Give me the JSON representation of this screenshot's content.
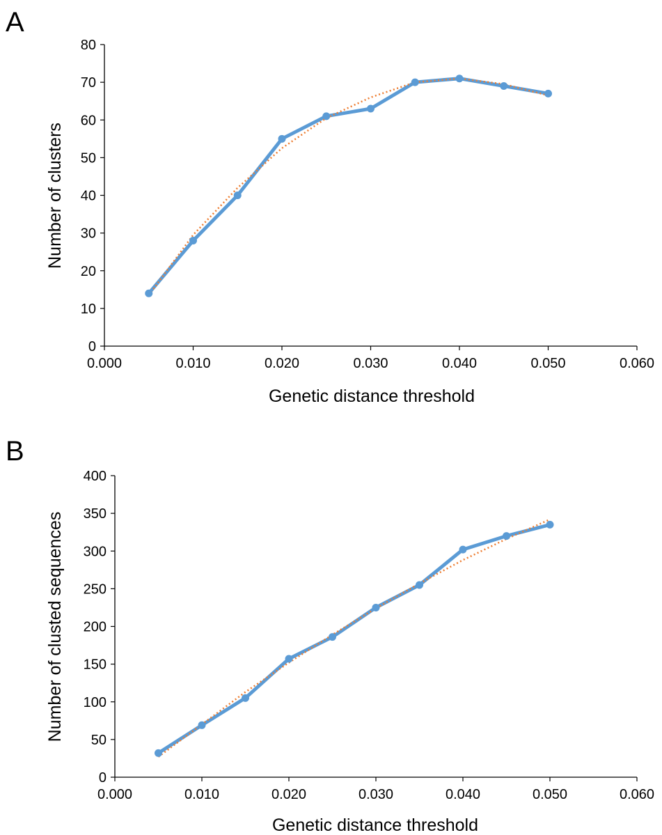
{
  "chart_data": [
    {
      "panel_label": "A",
      "type": "line",
      "x": [
        0.005,
        0.01,
        0.015,
        0.02,
        0.025,
        0.03,
        0.035,
        0.04,
        0.045,
        0.05
      ],
      "series": [
        {
          "values": [
            14,
            28,
            40,
            55,
            61,
            63,
            70,
            71,
            69,
            67
          ],
          "style": "solid-with-markers"
        }
      ],
      "trendline": {
        "type": "polynomial",
        "style": "dotted",
        "values": [
          13.5,
          29.5,
          42,
          52.5,
          60.5,
          66,
          70,
          71,
          69.5,
          66.5
        ]
      },
      "xlabel": "Genetic distance threshold",
      "ylabel": "Number of clusters",
      "xlim": [
        0,
        0.06
      ],
      "ylim": [
        0,
        80
      ],
      "xticks": [
        "0.000",
        "0.010",
        "0.020",
        "0.030",
        "0.040",
        "0.050",
        "0.060"
      ],
      "yticks": [
        "0",
        "10",
        "20",
        "30",
        "40",
        "50",
        "60",
        "70",
        "80"
      ],
      "grid": false,
      "legend": "none"
    },
    {
      "panel_label": "B",
      "type": "line",
      "x": [
        0.005,
        0.01,
        0.015,
        0.02,
        0.025,
        0.03,
        0.035,
        0.04,
        0.045,
        0.05
      ],
      "series": [
        {
          "values": [
            32,
            69,
            105,
            157,
            186,
            225,
            255,
            302,
            320,
            335
          ],
          "style": "solid-with-markers"
        }
      ],
      "trendline": {
        "type": "polynomial",
        "style": "dotted",
        "values": [
          27,
          70,
          113,
          152,
          189,
          224,
          257,
          288,
          316,
          342
        ]
      },
      "xlabel": "Genetic distance threshold",
      "ylabel": "Number of clusted sequences",
      "xlim": [
        0,
        0.06
      ],
      "ylim": [
        0,
        400
      ],
      "xticks": [
        "0.000",
        "0.010",
        "0.020",
        "0.030",
        "0.040",
        "0.050",
        "0.060"
      ],
      "yticks": [
        "0",
        "50",
        "100",
        "150",
        "200",
        "250",
        "300",
        "350",
        "400"
      ],
      "grid": false,
      "legend": "none"
    }
  ],
  "colors": {
    "series": "#5B9BD5",
    "trendline": "#ED7D31",
    "axis": "#000000"
  }
}
